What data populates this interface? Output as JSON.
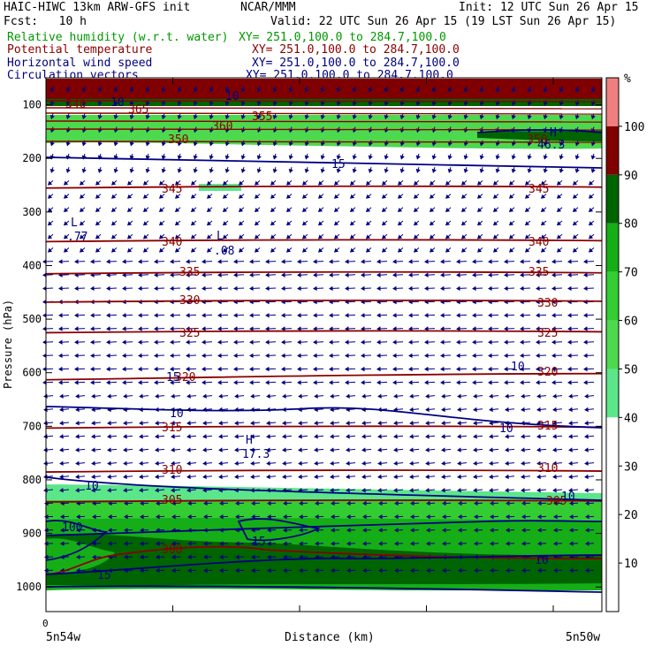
{
  "header": {
    "model": "HAIC-HIWC 13km ARW-GFS init",
    "org": "NCAR/MMM",
    "init": "Init: 12 UTC Sun 26 Apr 15",
    "fcst": "Fcst:   10 h",
    "valid": "Valid: 22 UTC Sun 26 Apr 15 (19 LST Sun 26 Apr 15)",
    "fields": [
      {
        "name": "Relative humidity (w.r.t. water)",
        "xy": "XY= 251.0,100.0 to 284.7,100.0",
        "color": "#009900"
      },
      {
        "name": "Potential temperature",
        "xy": "XY= 251.0,100.0 to 284.7,100.0",
        "color": "#8b0000"
      },
      {
        "name": "Horizontal wind speed",
        "xy": "XY= 251.0,100.0 to 284.7,100.0",
        "color": "#000080"
      },
      {
        "name": "Circulation vectors",
        "xy": "XY= 251.0,100.0 to 284.7,100.0",
        "color": "#000080"
      }
    ]
  },
  "colorbar": {
    "unit": "%",
    "levels": [
      10,
      20,
      30,
      40,
      50,
      60,
      70,
      80,
      90,
      100
    ],
    "colors": [
      "#ffffff",
      "#ffffff",
      "#ffffff",
      "#ffffff",
      "#5ce68a",
      "#4dd94d",
      "#33cc33",
      "#16ae16",
      "#006400",
      "#800000",
      "#f08080"
    ]
  },
  "chart_data": {
    "type": "cross-section",
    "ylabel": "Pressure (hPa)",
    "xlabel": "Distance (km)",
    "x_origin_label": "0",
    "x_left_label": "5n54w",
    "x_right_label": "5n50w",
    "y_ticks": [
      100,
      200,
      300,
      400,
      500,
      600,
      700,
      800,
      900,
      1000
    ],
    "ylim": [
      1050,
      50
    ],
    "theta_contours": [
      {
        "value": 345,
        "p": 252,
        "labels": [
          "345",
          "345"
        ]
      },
      {
        "value": 340,
        "p": 352,
        "labels": [
          "340",
          "340"
        ]
      },
      {
        "value": 335,
        "p": 412,
        "labels": [
          "335",
          "335"
        ]
      },
      {
        "value": 330,
        "p": 465,
        "labels": [
          "330",
          "330"
        ]
      },
      {
        "value": 325,
        "p": 522,
        "labels": [
          "325",
          "325"
        ]
      },
      {
        "value": 320,
        "p": 605,
        "labels": [
          "320",
          "320"
        ]
      },
      {
        "value": 315,
        "p": 700,
        "labels": [
          "315",
          "315"
        ]
      },
      {
        "value": 310,
        "p": 782,
        "labels": [
          "310",
          "310"
        ]
      },
      {
        "value": 305,
        "p": 838,
        "labels": [
          "305",
          "305"
        ]
      },
      {
        "value": 300,
        "p": 950,
        "labels": [
          "300"
        ]
      }
    ],
    "theta_upper_labels": [
      "340",
      "365",
      "360",
      "355",
      "350",
      "350"
    ],
    "wind_contour_labels": [
      "10",
      "10",
      "15",
      "15",
      "10",
      "10",
      "10",
      "10",
      "100",
      "15",
      "15",
      "10",
      "10"
    ],
    "extrema": [
      {
        "type": "L",
        "value": ".77"
      },
      {
        "type": "L",
        "value": ".08"
      },
      {
        "type": "H",
        "value": "17.3"
      },
      {
        "type": "H",
        "value": "46.3"
      }
    ],
    "rh_bands": [
      {
        "p_top": 85,
        "p_bottom": 115,
        "rh": 95
      },
      {
        "p_top": 130,
        "p_bottom": 170,
        "rh": 55
      },
      {
        "p_top": 820,
        "p_bottom": 1000,
        "rh": 70
      }
    ]
  }
}
